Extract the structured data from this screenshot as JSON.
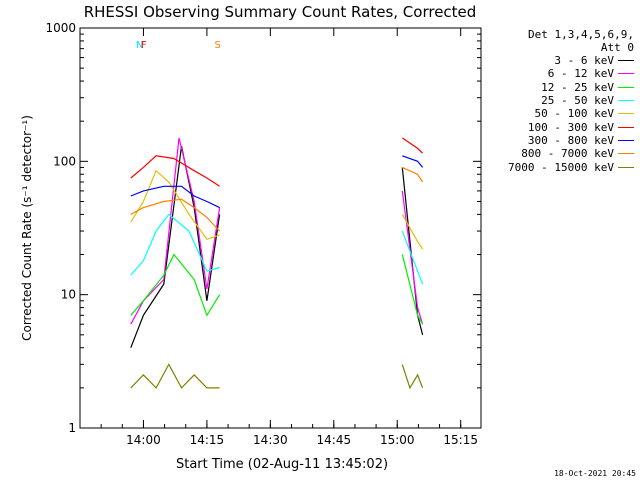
{
  "chart_data": {
    "type": "line",
    "title": "RHESSI Observing Summary Count Rates, Corrected",
    "xlabel": "Start Time (02-Aug-11 13:45:02)",
    "ylabel": "Corrected Count Rate (s⁻¹ detector⁻¹)",
    "yscale": "log",
    "ylim": [
      1,
      1000
    ],
    "xlim": [
      13.75,
      15.33
    ],
    "x_ticks": [
      "14:00",
      "14:15",
      "14:30",
      "14:45",
      "15:00",
      "15:15"
    ],
    "y_ticks": [
      "1",
      "10",
      "100",
      "1000"
    ],
    "legend_header": [
      "Det 1,3,4,5,6,9,",
      "Att 0"
    ],
    "series": [
      {
        "name": "3 - 6 keV",
        "color": "#000000",
        "x": [
          13.95,
          14.0,
          14.08,
          14.15,
          14.2,
          14.25,
          14.3,
          14.5,
          15.02,
          15.08,
          15.1
        ],
        "y": [
          4,
          7,
          12,
          130,
          45,
          9,
          40,
          null,
          90,
          7,
          5
        ]
      },
      {
        "name": "6 - 12 keV",
        "color": "#ff00ff",
        "x": [
          13.95,
          14.0,
          14.08,
          14.14,
          14.2,
          14.25,
          14.3,
          14.5,
          15.02,
          15.08,
          15.1
        ],
        "y": [
          6,
          9,
          13,
          150,
          50,
          11,
          45,
          null,
          60,
          8,
          6
        ]
      },
      {
        "name": "12 - 25 keV",
        "color": "#00ee00",
        "x": [
          13.95,
          14.0,
          14.08,
          14.12,
          14.2,
          14.25,
          14.3,
          14.5,
          15.02,
          15.08,
          15.1
        ],
        "y": [
          7,
          9,
          14,
          20,
          13,
          7,
          10,
          null,
          20,
          7,
          6
        ]
      },
      {
        "name": "25 - 50 keV",
        "color": "#00ffff",
        "x": [
          13.95,
          14.0,
          14.05,
          14.1,
          14.18,
          14.25,
          14.3,
          14.5,
          15.02,
          15.08,
          15.1
        ],
        "y": [
          14,
          18,
          30,
          40,
          30,
          15,
          16,
          null,
          30,
          15,
          12
        ]
      },
      {
        "name": "50 - 100 keV",
        "color": "#e0c000",
        "x": [
          13.95,
          14.0,
          14.05,
          14.1,
          14.18,
          14.25,
          14.3,
          14.5,
          15.02,
          15.08,
          15.1
        ],
        "y": [
          35,
          50,
          85,
          70,
          40,
          26,
          28,
          null,
          40,
          25,
          22
        ]
      },
      {
        "name": "100 - 300 keV",
        "color": "#ff0000",
        "x": [
          13.95,
          14.0,
          14.05,
          14.12,
          14.2,
          14.25,
          14.3,
          14.5,
          15.02,
          15.08,
          15.1
        ],
        "y": [
          75,
          90,
          110,
          105,
          85,
          75,
          65,
          null,
          150,
          125,
          115
        ]
      },
      {
        "name": "300 - 800 keV",
        "color": "#0000ff",
        "x": [
          13.95,
          14.0,
          14.08,
          14.15,
          14.2,
          14.25,
          14.3,
          14.5,
          15.02,
          15.08,
          15.1
        ],
        "y": [
          55,
          60,
          65,
          65,
          55,
          50,
          45,
          null,
          110,
          100,
          90
        ]
      },
      {
        "name": "800 - 7000 keV",
        "color": "#ff8000",
        "x": [
          13.95,
          14.0,
          14.08,
          14.15,
          14.2,
          14.25,
          14.3,
          14.5,
          15.02,
          15.08,
          15.1
        ],
        "y": [
          40,
          45,
          50,
          52,
          45,
          38,
          30,
          null,
          90,
          80,
          70
        ]
      },
      {
        "name": "7000 - 15000 keV",
        "color": "#808000",
        "x": [
          13.95,
          14.0,
          14.05,
          14.1,
          14.15,
          14.2,
          14.25,
          14.3,
          14.5,
          15.02,
          15.05,
          15.08,
          15.1
        ],
        "y": [
          2,
          2.5,
          2,
          3,
          2,
          2.5,
          2,
          2,
          null,
          3,
          2,
          2.5,
          2
        ]
      }
    ],
    "annotations": [
      {
        "label": "N",
        "color": "#00e0ff",
        "x": 13.97
      },
      {
        "label": "F",
        "color": "#ff0000",
        "x": 13.99
      },
      {
        "label": "S",
        "color": "#ff8000",
        "x": 14.28
      }
    ]
  },
  "footer_timestamp": "18-Oct-2021 20:45"
}
